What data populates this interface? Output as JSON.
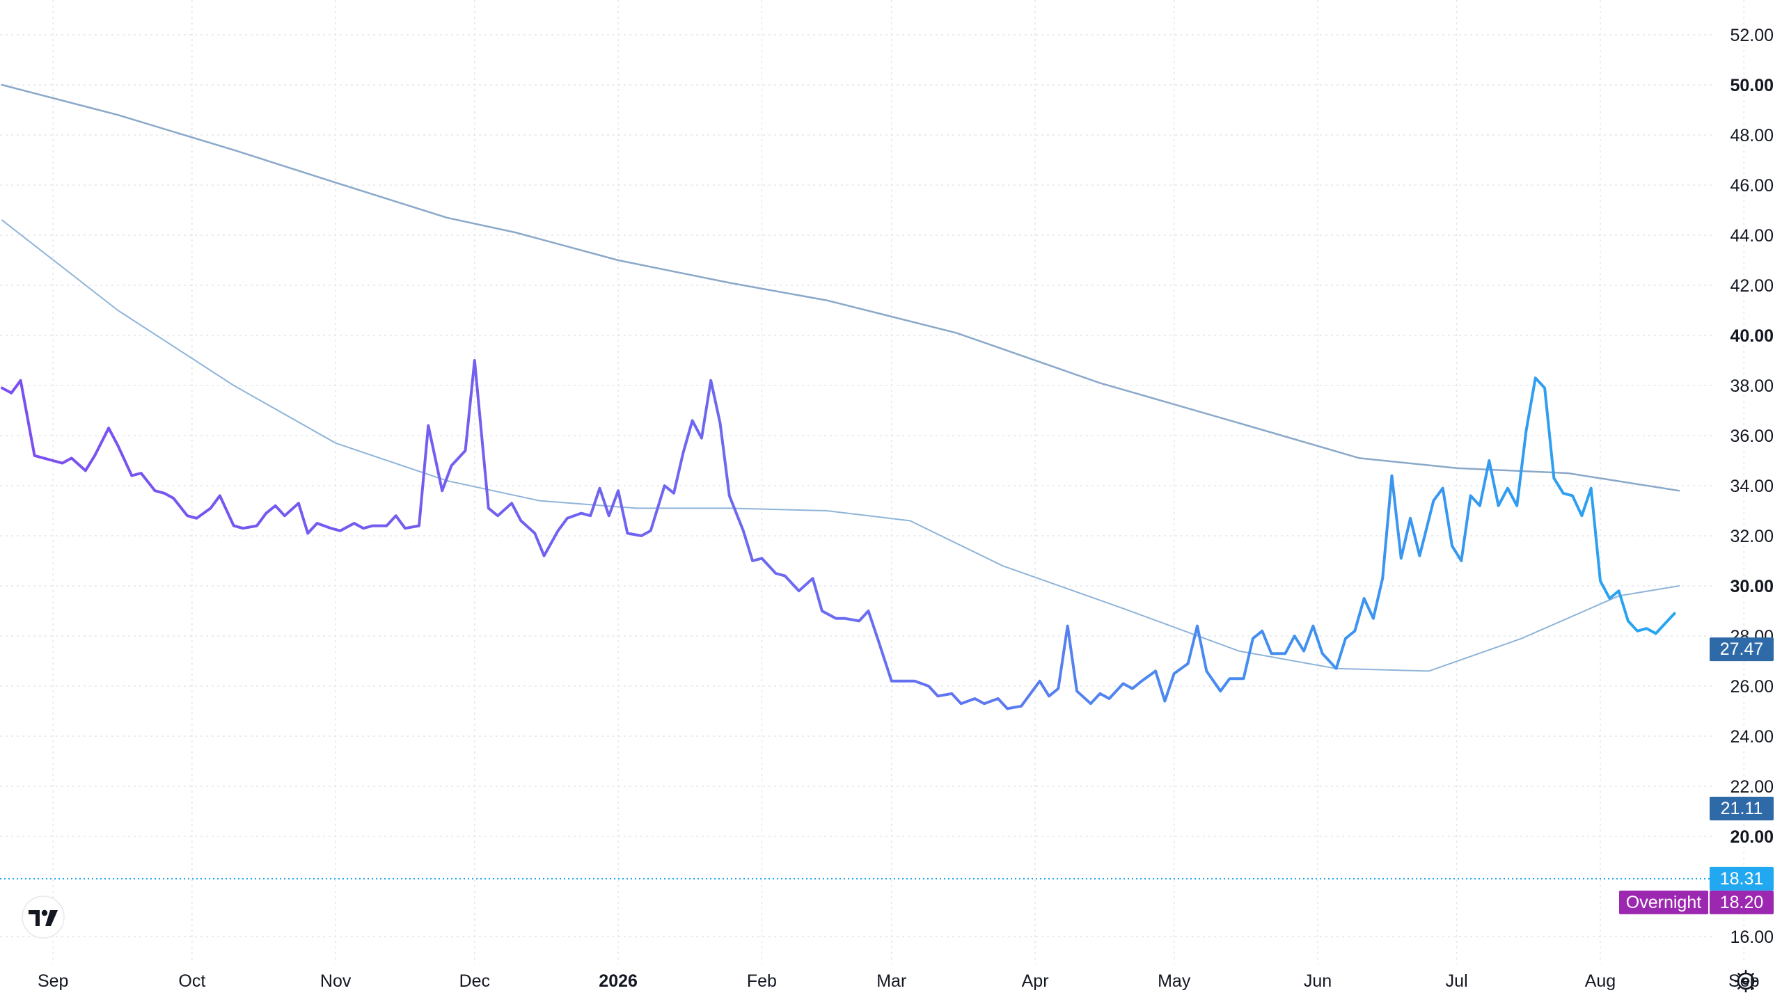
{
  "chart_data": {
    "type": "line",
    "x_start": "2025-08-21",
    "x_end": "2026-08-18",
    "x_ticks": [
      {
        "label": "Sep",
        "date": "2025-09-01",
        "major": false
      },
      {
        "label": "Oct",
        "date": "2025-10-01",
        "major": false
      },
      {
        "label": "Nov",
        "date": "2025-11-01",
        "major": false
      },
      {
        "label": "Dec",
        "date": "2025-12-01",
        "major": false
      },
      {
        "label": "2026",
        "date": "2026-01-01",
        "major": true
      },
      {
        "label": "Feb",
        "date": "2026-02-01",
        "major": false
      },
      {
        "label": "Mar",
        "date": "2026-03-01",
        "major": false
      },
      {
        "label": "Apr",
        "date": "2026-04-01",
        "major": false
      },
      {
        "label": "May",
        "date": "2026-05-01",
        "major": false
      },
      {
        "label": "Jun",
        "date": "2026-06-01",
        "major": false
      },
      {
        "label": "Jul",
        "date": "2026-07-01",
        "major": false
      },
      {
        "label": "Aug",
        "date": "2026-08-01",
        "major": false
      },
      {
        "label": "Sep",
        "date": "2026-09-01",
        "major": false
      }
    ],
    "y_ticks": [
      {
        "label": "16.00",
        "value": 16,
        "major": false
      },
      {
        "label": "20.00",
        "value": 20,
        "major": true
      },
      {
        "label": "22.00",
        "value": 22,
        "major": false
      },
      {
        "label": "24.00",
        "value": 24,
        "major": false
      },
      {
        "label": "26.00",
        "value": 26,
        "major": false
      },
      {
        "label": "28.00",
        "value": 28,
        "major": false
      },
      {
        "label": "30.00",
        "value": 30,
        "major": true
      },
      {
        "label": "32.00",
        "value": 32,
        "major": false
      },
      {
        "label": "34.00",
        "value": 34,
        "major": false
      },
      {
        "label": "36.00",
        "value": 36,
        "major": false
      },
      {
        "label": "38.00",
        "value": 38,
        "major": false
      },
      {
        "label": "40.00",
        "value": 40,
        "major": true
      },
      {
        "label": "42.00",
        "value": 42,
        "major": false
      },
      {
        "label": "44.00",
        "value": 44,
        "major": false
      },
      {
        "label": "46.00",
        "value": 46,
        "major": false
      },
      {
        "label": "48.00",
        "value": 48,
        "major": false
      },
      {
        "label": "50.00",
        "value": 50,
        "major": true
      },
      {
        "label": "52.00",
        "value": 52,
        "major": false
      }
    ],
    "ylim": [
      14.5,
      53
    ],
    "grid": true,
    "series": [
      {
        "color_start": "#7b4ff0",
        "color_end": "#22a8f0",
        "width": 4,
        "points": [
          [
            "2025-08-21",
            37.9
          ],
          [
            "2025-08-23",
            37.7
          ],
          [
            "2025-08-25",
            38.2
          ],
          [
            "2025-08-28",
            35.2
          ],
          [
            "2025-09-01",
            35.0
          ],
          [
            "2025-09-03",
            34.9
          ],
          [
            "2025-09-05",
            35.1
          ],
          [
            "2025-09-08",
            34.6
          ],
          [
            "2025-09-10",
            35.2
          ],
          [
            "2025-09-13",
            36.3
          ],
          [
            "2025-09-15",
            35.6
          ],
          [
            "2025-09-18",
            34.4
          ],
          [
            "2025-09-20",
            34.5
          ],
          [
            "2025-09-23",
            33.8
          ],
          [
            "2025-09-25",
            33.7
          ],
          [
            "2025-09-27",
            33.5
          ],
          [
            "2025-09-30",
            32.8
          ],
          [
            "2025-10-02",
            32.7
          ],
          [
            "2025-10-05",
            33.1
          ],
          [
            "2025-10-07",
            33.6
          ],
          [
            "2025-10-10",
            32.4
          ],
          [
            "2025-10-12",
            32.3
          ],
          [
            "2025-10-15",
            32.4
          ],
          [
            "2025-10-17",
            32.9
          ],
          [
            "2025-10-19",
            33.2
          ],
          [
            "2025-10-21",
            32.8
          ],
          [
            "2025-10-24",
            33.3
          ],
          [
            "2025-10-26",
            32.1
          ],
          [
            "2025-10-28",
            32.5
          ],
          [
            "2025-10-31",
            32.3
          ],
          [
            "2025-11-02",
            32.2
          ],
          [
            "2025-11-05",
            32.5
          ],
          [
            "2025-11-07",
            32.3
          ],
          [
            "2025-11-09",
            32.4
          ],
          [
            "2025-11-12",
            32.4
          ],
          [
            "2025-11-14",
            32.8
          ],
          [
            "2025-11-16",
            32.3
          ],
          [
            "2025-11-19",
            32.4
          ],
          [
            "2025-11-21",
            36.4
          ],
          [
            "2025-11-24",
            33.8
          ],
          [
            "2025-11-26",
            34.8
          ],
          [
            "2025-11-29",
            35.4
          ],
          [
            "2025-12-01",
            39.0
          ],
          [
            "2025-12-04",
            33.1
          ],
          [
            "2025-12-06",
            32.8
          ],
          [
            "2025-12-09",
            33.3
          ],
          [
            "2025-12-11",
            32.6
          ],
          [
            "2025-12-14",
            32.1
          ],
          [
            "2025-12-16",
            31.2
          ],
          [
            "2025-12-19",
            32.2
          ],
          [
            "2025-12-21",
            32.7
          ],
          [
            "2025-12-24",
            32.9
          ],
          [
            "2025-12-26",
            32.8
          ],
          [
            "2025-12-28",
            33.9
          ],
          [
            "2025-12-30",
            32.8
          ],
          [
            "2026-01-01",
            33.8
          ],
          [
            "2026-01-03",
            32.1
          ],
          [
            "2026-01-06",
            32.0
          ],
          [
            "2026-01-08",
            32.2
          ],
          [
            "2026-01-11",
            34.0
          ],
          [
            "2026-01-13",
            33.7
          ],
          [
            "2026-01-15",
            35.3
          ],
          [
            "2026-01-17",
            36.6
          ],
          [
            "2026-01-19",
            35.9
          ],
          [
            "2026-01-21",
            38.2
          ],
          [
            "2026-01-23",
            36.5
          ],
          [
            "2026-01-25",
            33.6
          ],
          [
            "2026-01-28",
            32.2
          ],
          [
            "2026-01-30",
            31.0
          ],
          [
            "2026-02-01",
            31.1
          ],
          [
            "2026-02-04",
            30.5
          ],
          [
            "2026-02-06",
            30.4
          ],
          [
            "2026-02-09",
            29.8
          ],
          [
            "2026-02-12",
            30.3
          ],
          [
            "2026-02-14",
            29.0
          ],
          [
            "2026-02-17",
            28.7
          ],
          [
            "2026-02-19",
            28.7
          ],
          [
            "2026-02-22",
            28.6
          ],
          [
            "2026-02-24",
            29.0
          ],
          [
            "2026-02-26",
            27.9
          ],
          [
            "2026-03-01",
            26.2
          ],
          [
            "2026-03-04",
            26.2
          ],
          [
            "2026-03-06",
            26.2
          ],
          [
            "2026-03-09",
            26.0
          ],
          [
            "2026-03-11",
            25.6
          ],
          [
            "2026-03-14",
            25.7
          ],
          [
            "2026-03-16",
            25.3
          ],
          [
            "2026-03-19",
            25.5
          ],
          [
            "2026-03-21",
            25.3
          ],
          [
            "2026-03-24",
            25.5
          ],
          [
            "2026-03-26",
            25.1
          ],
          [
            "2026-03-29",
            25.2
          ],
          [
            "2026-03-31",
            25.7
          ],
          [
            "2026-04-02",
            26.2
          ],
          [
            "2026-04-04",
            25.6
          ],
          [
            "2026-04-06",
            25.9
          ],
          [
            "2026-04-08",
            28.4
          ],
          [
            "2026-04-10",
            25.8
          ],
          [
            "2026-04-13",
            25.3
          ],
          [
            "2026-04-15",
            25.7
          ],
          [
            "2026-04-17",
            25.5
          ],
          [
            "2026-04-20",
            26.1
          ],
          [
            "2026-04-22",
            25.9
          ],
          [
            "2026-04-24",
            26.2
          ],
          [
            "2026-04-27",
            26.6
          ],
          [
            "2026-04-29",
            25.4
          ],
          [
            "2026-05-01",
            26.5
          ],
          [
            "2026-05-04",
            26.9
          ],
          [
            "2026-05-06",
            28.4
          ],
          [
            "2026-05-08",
            26.6
          ],
          [
            "2026-05-11",
            25.8
          ],
          [
            "2026-05-13",
            26.3
          ],
          [
            "2026-05-16",
            26.3
          ],
          [
            "2026-05-18",
            27.9
          ],
          [
            "2026-05-20",
            28.2
          ],
          [
            "2026-05-22",
            27.3
          ],
          [
            "2026-05-25",
            27.3
          ],
          [
            "2026-05-27",
            28.0
          ],
          [
            "2026-05-29",
            27.4
          ],
          [
            "2026-05-31",
            28.4
          ],
          [
            "2026-06-02",
            27.3
          ],
          [
            "2026-06-05",
            26.7
          ],
          [
            "2026-06-07",
            27.9
          ],
          [
            "2026-06-09",
            28.2
          ],
          [
            "2026-06-11",
            29.5
          ],
          [
            "2026-06-13",
            28.7
          ],
          [
            "2026-06-15",
            30.3
          ],
          [
            "2026-06-17",
            34.4
          ],
          [
            "2026-06-19",
            31.1
          ],
          [
            "2026-06-21",
            32.7
          ],
          [
            "2026-06-23",
            31.2
          ],
          [
            "2026-06-26",
            33.4
          ],
          [
            "2026-06-28",
            33.9
          ],
          [
            "2026-06-30",
            31.6
          ],
          [
            "2026-07-02",
            31.0
          ],
          [
            "2026-07-04",
            33.6
          ],
          [
            "2026-07-06",
            33.2
          ],
          [
            "2026-07-08",
            35.0
          ],
          [
            "2026-07-10",
            33.2
          ],
          [
            "2026-07-12",
            33.9
          ],
          [
            "2026-07-14",
            33.2
          ],
          [
            "2026-07-16",
            36.2
          ],
          [
            "2026-07-18",
            38.3
          ],
          [
            "2026-07-20",
            37.9
          ],
          [
            "2026-07-22",
            34.3
          ],
          [
            "2026-07-24",
            33.7
          ],
          [
            "2026-07-26",
            33.6
          ],
          [
            "2026-07-28",
            32.8
          ],
          [
            "2026-07-30",
            33.9
          ],
          [
            "2026-08-01",
            30.2
          ],
          [
            "2026-08-03",
            29.5
          ],
          [
            "2026-08-05",
            29.8
          ],
          [
            "2026-08-07",
            28.6
          ],
          [
            "2026-08-09",
            28.2
          ],
          [
            "2026-08-11",
            28.3
          ],
          [
            "2026-08-13",
            28.1
          ],
          [
            "2026-08-15",
            28.5
          ],
          [
            "2026-08-17",
            28.9
          ]
        ]
      },
      {
        "color": "#8aa8c8",
        "width": 2.5,
        "points": [
          [
            "2025-08-21",
            50.0
          ],
          [
            "2025-09-15",
            48.8
          ],
          [
            "2025-10-10",
            47.4
          ],
          [
            "2025-11-01",
            46.1
          ],
          [
            "2025-11-25",
            44.7
          ],
          [
            "2025-12-10",
            44.1
          ],
          [
            "2026-01-01",
            43.0
          ],
          [
            "2026-01-25",
            42.1
          ],
          [
            "2026-02-15",
            41.4
          ],
          [
            "2026-03-15",
            40.1
          ],
          [
            "2026-04-15",
            38.1
          ],
          [
            "2026-05-15",
            36.5
          ],
          [
            "2026-06-10",
            35.1
          ],
          [
            "2026-07-01",
            34.7
          ],
          [
            "2026-07-25",
            34.5
          ],
          [
            "2026-08-18",
            33.8
          ]
        ]
      },
      {
        "color": "#8fb4d8",
        "width": 2,
        "points": [
          [
            "2025-08-21",
            44.6
          ],
          [
            "2025-09-15",
            41.0
          ],
          [
            "2025-10-10",
            38.0
          ],
          [
            "2025-11-01",
            35.7
          ],
          [
            "2025-11-25",
            34.2
          ],
          [
            "2025-12-15",
            33.4
          ],
          [
            "2026-01-05",
            33.1
          ],
          [
            "2026-01-25",
            33.1
          ],
          [
            "2026-02-15",
            33.0
          ],
          [
            "2026-03-05",
            32.6
          ],
          [
            "2026-03-25",
            30.8
          ],
          [
            "2026-04-20",
            29.1
          ],
          [
            "2026-05-15",
            27.4
          ],
          [
            "2026-06-05",
            26.7
          ],
          [
            "2026-06-25",
            26.6
          ],
          [
            "2026-07-15",
            27.9
          ],
          [
            "2026-08-05",
            29.6
          ],
          [
            "2026-08-18",
            30.0
          ]
        ]
      }
    ],
    "badges": [
      {
        "value": 27.47,
        "label": "27.47",
        "color": "#2f6aa8"
      },
      {
        "value": 21.11,
        "label": "21.11",
        "color": "#2f6aa8"
      },
      {
        "value": 18.31,
        "label": "18.31",
        "color": "#22a8f0"
      },
      {
        "value": 18.2,
        "label": "18.20",
        "color": "#9c27b0",
        "tag": "Overnight"
      }
    ],
    "price_line_value": 18.31
  }
}
